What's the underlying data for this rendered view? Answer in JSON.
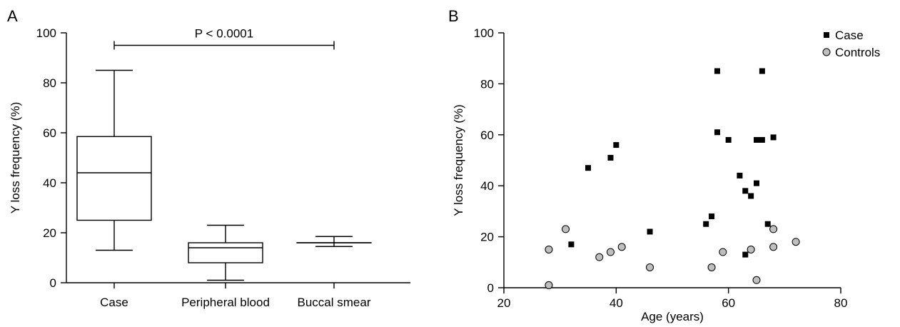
{
  "chart_data": [
    {
      "type": "box",
      "panel_label": "A",
      "ylabel": "Y loss frequency (%)",
      "xlabel": "",
      "ylim": [
        0,
        100
      ],
      "yticks": [
        0,
        20,
        40,
        60,
        80,
        100
      ],
      "categories": [
        "Case",
        "Peripheral blood",
        "Buccal smear"
      ],
      "boxes": [
        {
          "min": 13,
          "q1": 25,
          "median": 44,
          "q3": 58.5,
          "max": 85
        },
        {
          "min": 1,
          "q1": 8,
          "median": 14,
          "q3": 16,
          "max": 23
        },
        {
          "min": 14.5,
          "q1": 16,
          "median": 16,
          "q3": 16,
          "max": 18.5
        }
      ],
      "annotation": {
        "text": "P < 0.0001",
        "from": 0,
        "to": 2,
        "y": 95
      }
    },
    {
      "type": "scatter",
      "panel_label": "B",
      "xlabel": "Age (years)",
      "ylabel": "Y loss frequency (%)",
      "xlim": [
        20,
        80
      ],
      "ylim": [
        0,
        100
      ],
      "xticks": [
        20,
        40,
        60,
        80
      ],
      "yticks": [
        0,
        20,
        40,
        60,
        80,
        100
      ],
      "legend_position": "top-right",
      "series": [
        {
          "name": "Case",
          "marker": "square",
          "color": "#000000",
          "points": [
            [
              32,
              17
            ],
            [
              35,
              47
            ],
            [
              39,
              51
            ],
            [
              40,
              56
            ],
            [
              46,
              22
            ],
            [
              56,
              25
            ],
            [
              57,
              28
            ],
            [
              58,
              85
            ],
            [
              58,
              61
            ],
            [
              60,
              58
            ],
            [
              62,
              44
            ],
            [
              63,
              38
            ],
            [
              63,
              13
            ],
            [
              64,
              36
            ],
            [
              65,
              41
            ],
            [
              65,
              58
            ],
            [
              66,
              58
            ],
            [
              66,
              85
            ],
            [
              67,
              25
            ],
            [
              68,
              59
            ]
          ]
        },
        {
          "name": "Controls",
          "marker": "circle",
          "color": "#bfbfbf",
          "points": [
            [
              28,
              1
            ],
            [
              28,
              15
            ],
            [
              31,
              23
            ],
            [
              37,
              12
            ],
            [
              39,
              14
            ],
            [
              41,
              16
            ],
            [
              46,
              8
            ],
            [
              57,
              8
            ],
            [
              59,
              14
            ],
            [
              64,
              15
            ],
            [
              65,
              3
            ],
            [
              68,
              23
            ],
            [
              68,
              16
            ],
            [
              72,
              18
            ]
          ]
        }
      ]
    }
  ]
}
